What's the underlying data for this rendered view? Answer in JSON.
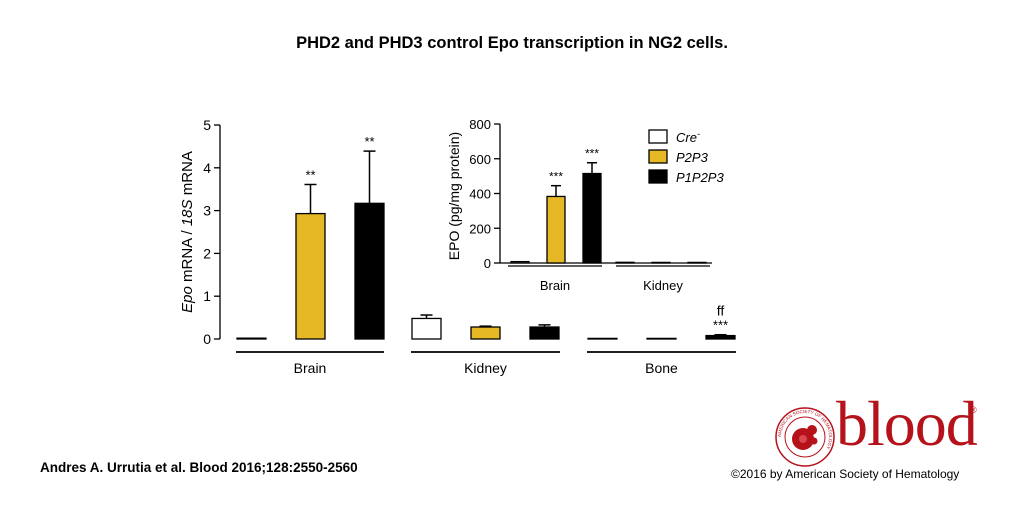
{
  "header": {
    "title": "PHD2 and PHD3 control Epo transcription in NG2 cells."
  },
  "footer": {
    "citation": "Andres A. Urrutia et al. Blood 2016;128:2550-2560",
    "copyright": "©2016 by American Society of Hematology",
    "logo_text": "blood",
    "logo_registered": "®",
    "seal_text": "AMERICAN SOCIETY OF HEMATOLOGY"
  },
  "colors": {
    "cre": "#ffffff",
    "p2p3": "#e6b825",
    "p1p2p3": "#000000",
    "brand": "#b5121b"
  },
  "chart_data": [
    {
      "type": "bar",
      "title": "",
      "ylabel_parts": [
        "Epo",
        " mRNA / ",
        "18S",
        " mRNA"
      ],
      "ylim": [
        0,
        5
      ],
      "yticks": [
        "0",
        "1",
        "2",
        "3",
        "4",
        "5"
      ],
      "categories": [
        "Brain",
        "Kidney",
        "Bone"
      ],
      "series": [
        {
          "name": "Cre-",
          "values": [
            0.02,
            0.48,
            0.0
          ],
          "errors": [
            0.0,
            0.08,
            0.0
          ]
        },
        {
          "name": "P2P3",
          "values": [
            2.93,
            0.28,
            0.0
          ],
          "errors": [
            0.68,
            0.02,
            0.0
          ]
        },
        {
          "name": "P1P2P3",
          "values": [
            3.17,
            0.28,
            0.08
          ],
          "errors": [
            1.22,
            0.05,
            0.02
          ]
        }
      ],
      "annotations": [
        {
          "category": "Brain",
          "series": "P2P3",
          "text": "**"
        },
        {
          "category": "Brain",
          "series": "P1P2P3",
          "text": "**"
        },
        {
          "category": "Bone",
          "series": "P1P2P3",
          "text": "***",
          "text2": "ff"
        }
      ]
    },
    {
      "type": "bar",
      "title": "",
      "ylabel": "EPO (pg/mg protein)",
      "ylim": [
        0,
        800
      ],
      "yticks": [
        "0",
        "200",
        "400",
        "600",
        "800"
      ],
      "categories": [
        "Brain",
        "Kidney"
      ],
      "legend": [
        {
          "label": "Cre",
          "sup": "-",
          "key": "cre"
        },
        {
          "label": "P2P3",
          "sup": "",
          "key": "p2p3"
        },
        {
          "label": "P1P2P3",
          "sup": "",
          "key": "p1p2p3"
        }
      ],
      "series": [
        {
          "name": "Cre-",
          "values": [
            8,
            4
          ],
          "errors": [
            0,
            0
          ]
        },
        {
          "name": "P2P3",
          "values": [
            383,
            3
          ],
          "errors": [
            62,
            0
          ]
        },
        {
          "name": "P1P2P3",
          "values": [
            515,
            3
          ],
          "errors": [
            62,
            0
          ]
        }
      ],
      "annotations": [
        {
          "category": "Brain",
          "series": "P2P3",
          "text": "***"
        },
        {
          "category": "Brain",
          "series": "P1P2P3",
          "text": "***"
        }
      ]
    }
  ]
}
